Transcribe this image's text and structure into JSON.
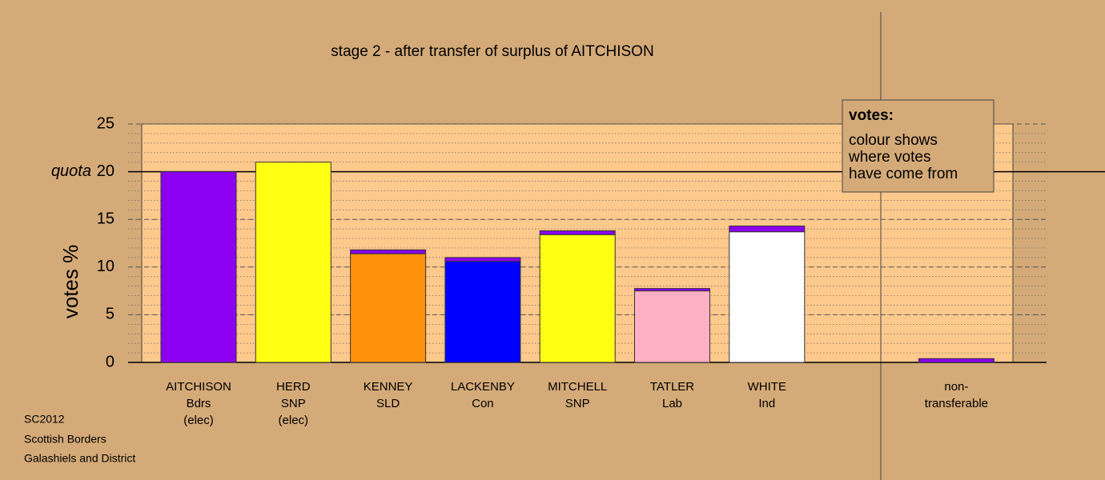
{
  "chart_data": {
    "type": "stacked_bar",
    "title": "stage 2 - after transfer of surplus of AITCHISON",
    "y_label": "votes %",
    "categories": [
      [
        "AITCHISON",
        "Bdrs",
        "(elec)"
      ],
      [
        "HERD",
        "SNP",
        "(elec)"
      ],
      [
        "KENNEY",
        "SLD"
      ],
      [
        "LACKENBY",
        "Con"
      ],
      [
        "MITCHELL",
        "SNP"
      ],
      [
        "TATLER",
        "Lab"
      ],
      [
        "WHITE",
        "Ind"
      ],
      null,
      [
        "non-",
        "transferable"
      ]
    ],
    "series": [
      {
        "colors": [
          "#8b00f0",
          "#ffff14",
          "#ff920a",
          "#0000ff",
          "#ffff14",
          "#ffb0c4",
          "#ffffff",
          null,
          null
        ],
        "values": [
          20,
          21,
          11.4,
          10.6,
          13.4,
          7.5,
          13.7,
          null,
          null
        ]
      },
      {
        "color": "#8b00f0",
        "values": [
          null,
          null,
          0.4,
          0.4,
          0.4,
          0.25,
          0.6,
          null,
          0.4
        ]
      }
    ],
    "ylim": [
      0,
      25
    ],
    "yticks": [
      0,
      5,
      10,
      15,
      20,
      25
    ],
    "minor_grid_step": 1,
    "quota": {
      "value": 20,
      "label": "quota"
    },
    "legend": {
      "title": "votes:",
      "lines": [
        "colour shows",
        "where votes",
        "have come from"
      ]
    },
    "footer": [
      "SC2012",
      "Scottish Borders",
      "Galashiels and District"
    ]
  }
}
